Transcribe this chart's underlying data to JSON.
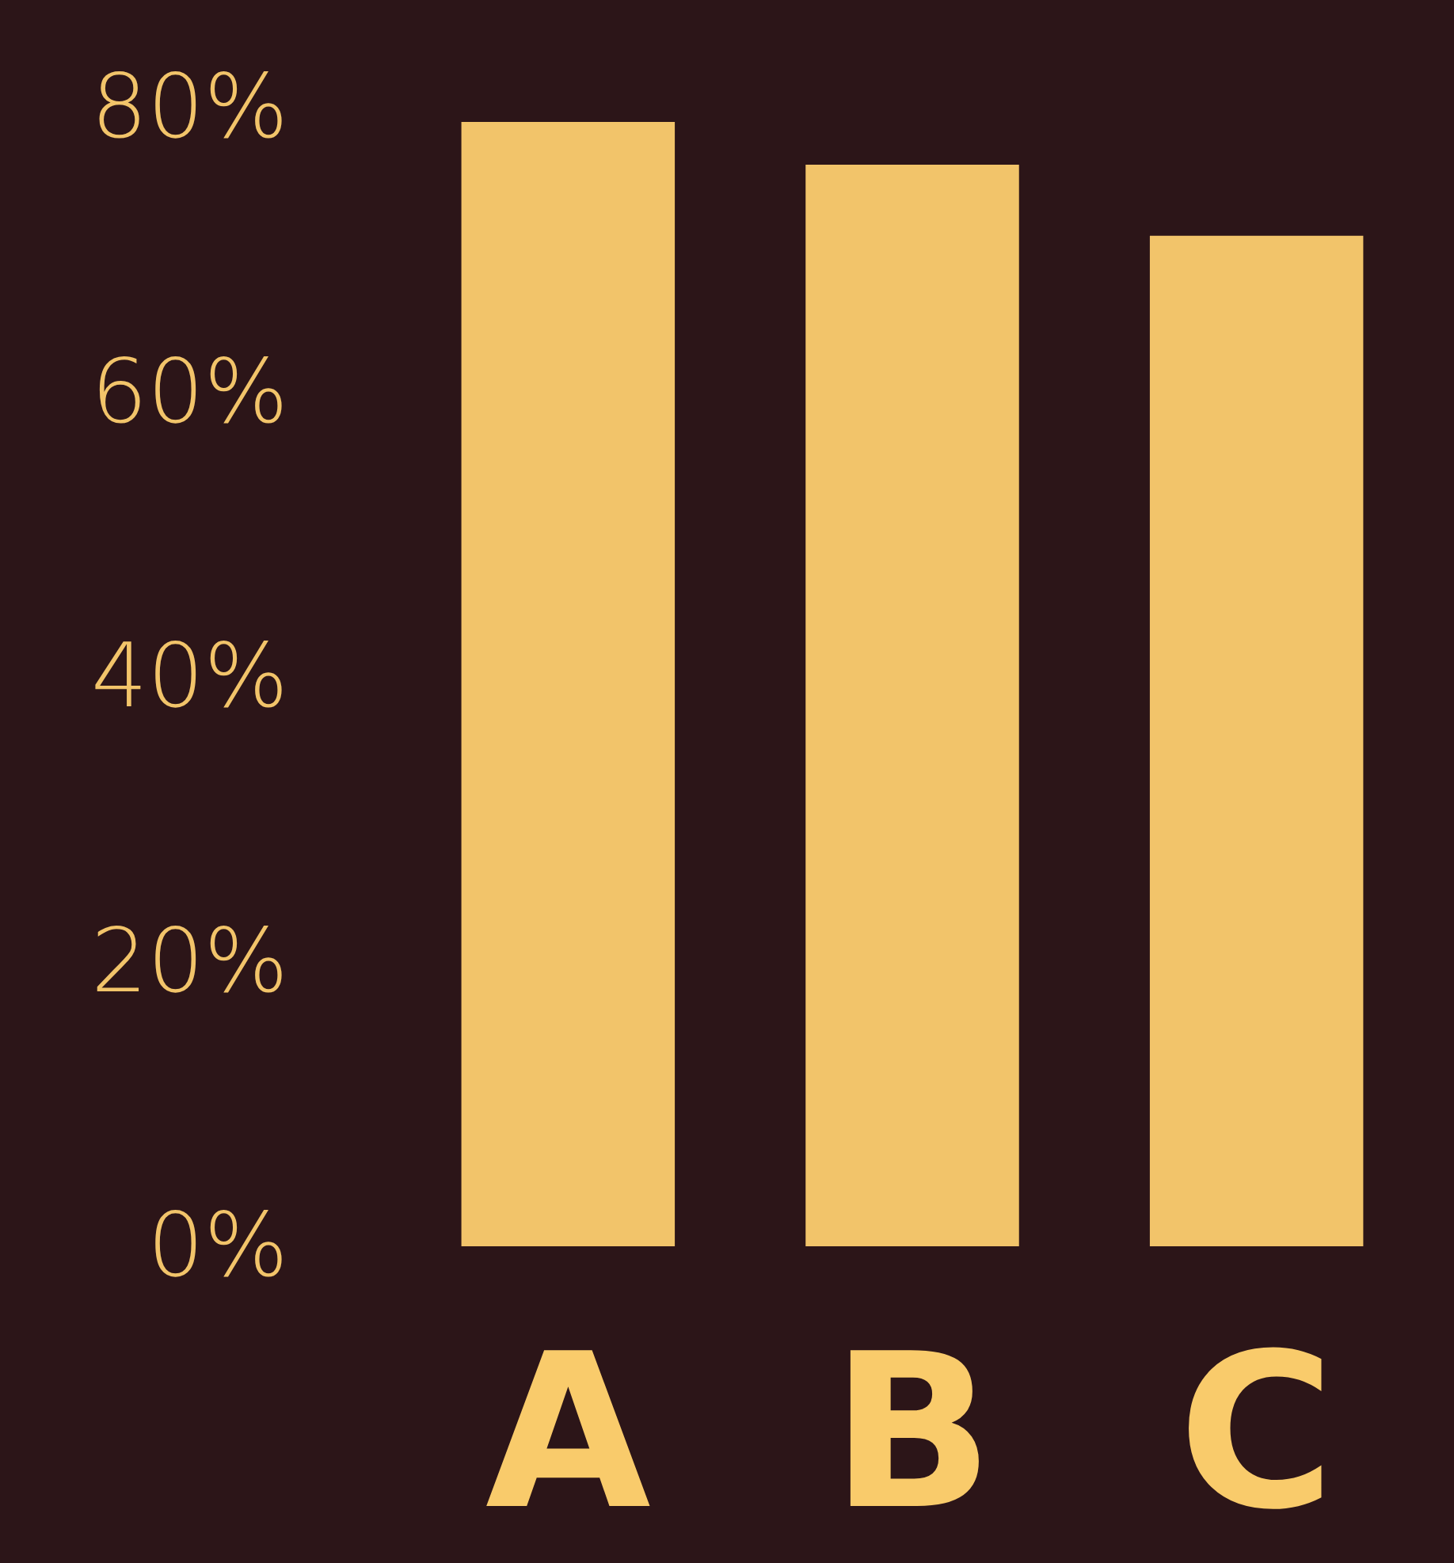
{
  "chart_data": {
    "type": "bar",
    "categories": [
      "A",
      "B",
      "C"
    ],
    "series": [
      {
        "color": "#f2c46a",
        "values": [
          79,
          76,
          71
        ]
      }
    ],
    "ylim": [
      0,
      80
    ],
    "yticks": [
      {
        "value": 0,
        "label": "0%"
      },
      {
        "value": 20,
        "label": "20%"
      },
      {
        "value": 40,
        "label": "40%"
      },
      {
        "value": 60,
        "label": "60%"
      },
      {
        "value": 80,
        "label": "80%"
      }
    ],
    "grid": false
  }
}
